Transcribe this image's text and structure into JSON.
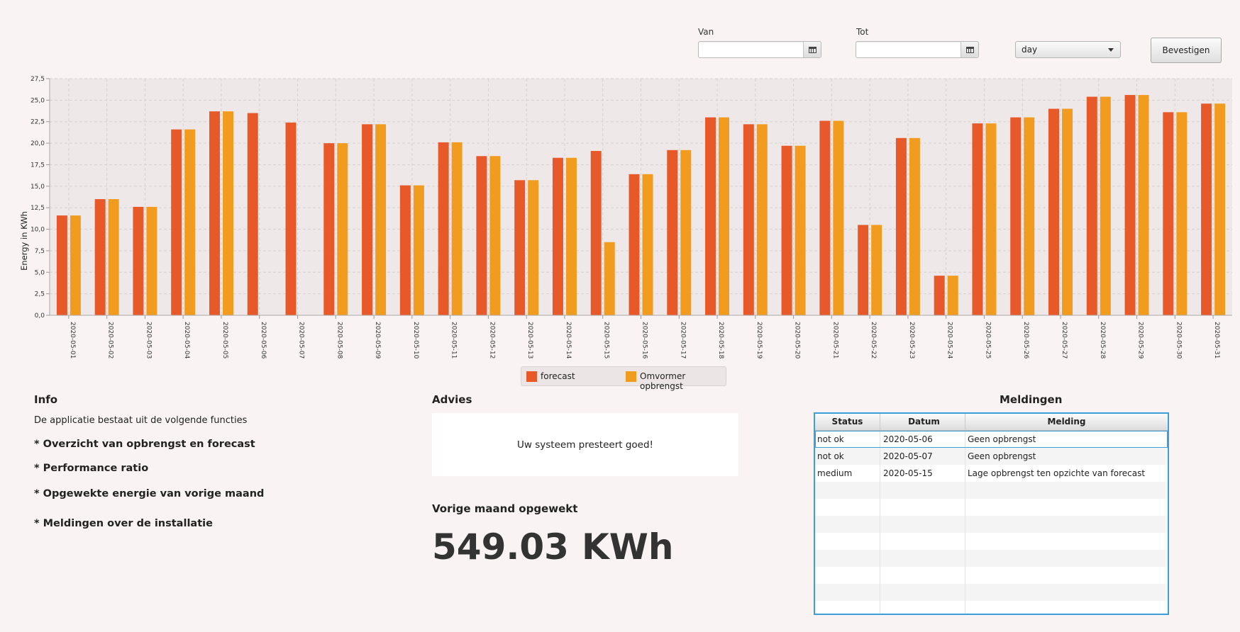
{
  "controls": {
    "van_label": "Van",
    "tot_label": "Tot",
    "van_value": "",
    "tot_value": "",
    "period_value": "day",
    "confirm_label": "Bevestigen"
  },
  "chart_data": {
    "type": "bar",
    "ylabel": "Energy in KWh",
    "ylim": [
      0,
      27.5
    ],
    "ytick_step": 2.5,
    "yticks": [
      "0,0",
      "2,5",
      "5,0",
      "7,5",
      "10,0",
      "12,5",
      "15,0",
      "17,5",
      "20,0",
      "22,5",
      "25,0",
      "27,5"
    ],
    "grid": true,
    "legend_position": "bottom",
    "categories": [
      "2020-05-01",
      "2020-05-02",
      "2020-05-03",
      "2020-05-04",
      "2020-05-05",
      "2020-05-06",
      "2020-05-07",
      "2020-05-08",
      "2020-05-09",
      "2020-05-10",
      "2020-05-11",
      "2020-05-12",
      "2020-05-13",
      "2020-05-14",
      "2020-05-15",
      "2020-05-16",
      "2020-05-17",
      "2020-05-18",
      "2020-05-19",
      "2020-05-20",
      "2020-05-21",
      "2020-05-22",
      "2020-05-23",
      "2020-05-24",
      "2020-05-25",
      "2020-05-26",
      "2020-05-27",
      "2020-05-28",
      "2020-05-29",
      "2020-05-30",
      "2020-05-31"
    ],
    "series": [
      {
        "name": "forecast",
        "color": "#e8592a",
        "values": [
          11.6,
          13.5,
          12.6,
          21.6,
          23.7,
          23.5,
          22.4,
          20.0,
          22.2,
          15.1,
          20.1,
          18.5,
          15.7,
          18.3,
          19.1,
          16.4,
          19.2,
          23.0,
          22.2,
          19.7,
          22.6,
          10.5,
          20.6,
          4.6,
          22.3,
          23.0,
          24.0,
          25.4,
          25.6,
          23.6,
          24.6
        ]
      },
      {
        "name": "Omvormer opbrengst",
        "color": "#f29c1f",
        "values": [
          11.6,
          13.5,
          12.6,
          21.6,
          23.7,
          0,
          0,
          20.0,
          22.2,
          15.1,
          20.1,
          18.5,
          15.7,
          18.3,
          8.5,
          16.4,
          19.2,
          23.0,
          22.2,
          19.7,
          22.6,
          10.5,
          20.6,
          4.6,
          22.3,
          23.0,
          24.0,
          25.4,
          25.6,
          23.6,
          24.6
        ]
      }
    ]
  },
  "legend": {
    "forecast": "forecast",
    "opbrengst": "Omvormer opbrengst"
  },
  "info": {
    "title": "Info",
    "intro": "De applicatie bestaat uit de volgende functies",
    "items": [
      "* Overzicht van opbrengst en forecast",
      "* Performance ratio",
      "* Opgewekte energie van vorige maand",
      "* Meldingen over de installatie"
    ]
  },
  "advies": {
    "title": "Advies",
    "message": "Uw systeem presteert goed!"
  },
  "vorige_maand": {
    "title": "Vorige maand opgewekt",
    "value": "549.03",
    "unit": "KWh"
  },
  "meldingen": {
    "title": "Meldingen",
    "columns": [
      "Status",
      "Datum",
      "Melding"
    ],
    "rows": [
      [
        "not ok",
        "2020-05-06",
        "Geen opbrengst"
      ],
      [
        "not ok",
        "2020-05-07",
        "Geen opbrengst"
      ],
      [
        "medium",
        "2020-05-15",
        "Lage opbrengst ten opzichte van forecast"
      ]
    ]
  }
}
